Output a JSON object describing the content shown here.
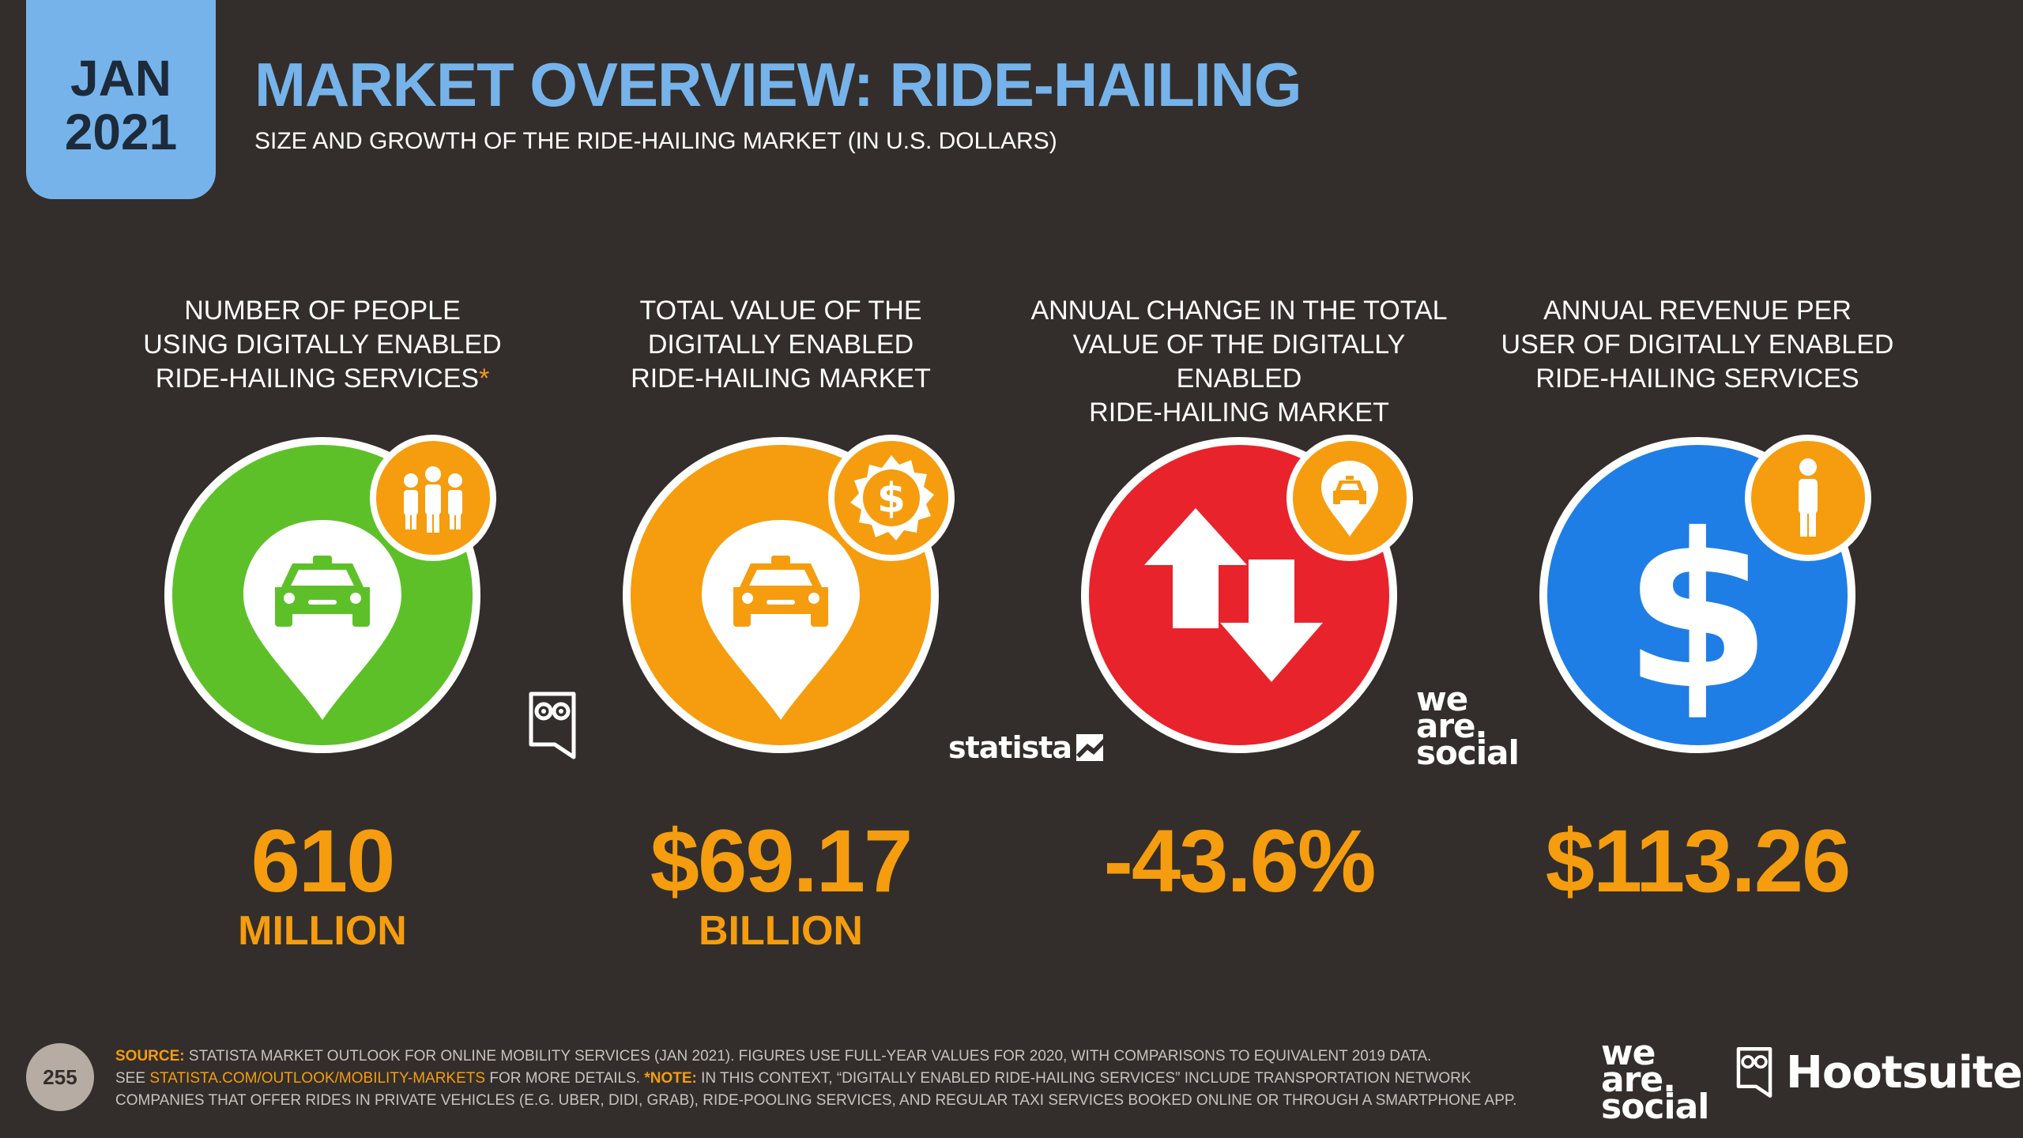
{
  "header": {
    "date_month": "JAN",
    "date_year": "2021",
    "title": "MARKET OVERVIEW: RIDE-HAILING",
    "subtitle": "SIZE AND GROWTH OF THE RIDE-HAILING MARKET (IN U.S. DOLLARS)"
  },
  "stats": [
    {
      "label_lines": [
        "NUMBER OF PEOPLE",
        "USING DIGITALLY ENABLED",
        "RIDE-HAILING SERVICES"
      ],
      "asterisk": "*",
      "value": "610",
      "unit": "MILLION",
      "circle_color": "#5ec029",
      "big_icon": "taxi-pin-icon",
      "small_icon": "people-icon"
    },
    {
      "label_lines": [
        "TOTAL VALUE OF THE",
        "DIGITALLY ENABLED",
        "RIDE-HAILING MARKET"
      ],
      "asterisk": "",
      "value": "$69.17",
      "unit": "BILLION",
      "circle_color": "#f59d0e",
      "big_icon": "taxi-pin-icon",
      "small_icon": "dollar-badge-icon"
    },
    {
      "label_lines": [
        "ANNUAL CHANGE IN THE TOTAL",
        "VALUE OF THE DIGITALLY ENABLED",
        "RIDE-HAILING MARKET"
      ],
      "asterisk": "",
      "value": "-43.6%",
      "unit": "",
      "circle_color": "#e8232b",
      "big_icon": "up-down-arrows-icon",
      "small_icon": "taxi-pin-icon"
    },
    {
      "label_lines": [
        "ANNUAL REVENUE PER",
        "USER OF DIGITALLY ENABLED",
        "RIDE-HAILING SERVICES"
      ],
      "asterisk": "",
      "value": "$113.26",
      "unit": "",
      "circle_color": "#1f7ee6",
      "big_icon": "dollar-sign-icon",
      "small_icon": "person-icon"
    }
  ],
  "brands": {
    "statista": "statista",
    "we_are_social": [
      "we",
      "are.",
      "social"
    ],
    "hootsuite": "Hootsuite"
  },
  "footer": {
    "page_number": "255",
    "source_label": "SOURCE:",
    "source_text_1": " STATISTA MARKET OUTLOOK FOR ONLINE MOBILITY SERVICES (JAN 2021). FIGURES USE FULL-YEAR VALUES FOR 2020, WITH COMPARISONS TO EQUIVALENT 2019 DATA.",
    "source_text_2": "SEE ",
    "source_link": "STATISTA.COM/OUTLOOK/MOBILITY-MARKETS",
    "source_text_3": " FOR MORE DETAILS. ",
    "note_label": "*NOTE:",
    "note_text": " IN THIS CONTEXT, “DIGITALLY ENABLED RIDE-HAILING SERVICES” INCLUDE TRANSPORTATION NETWORK COMPANIES THAT OFFER RIDES IN PRIVATE VEHICLES (E.G. UBER, DIDI, GRAB), RIDE-POOLING SERVICES, AND REGULAR TAXI SERVICES BOOKED ONLINE OR THROUGH A SMARTPHONE APP."
  }
}
